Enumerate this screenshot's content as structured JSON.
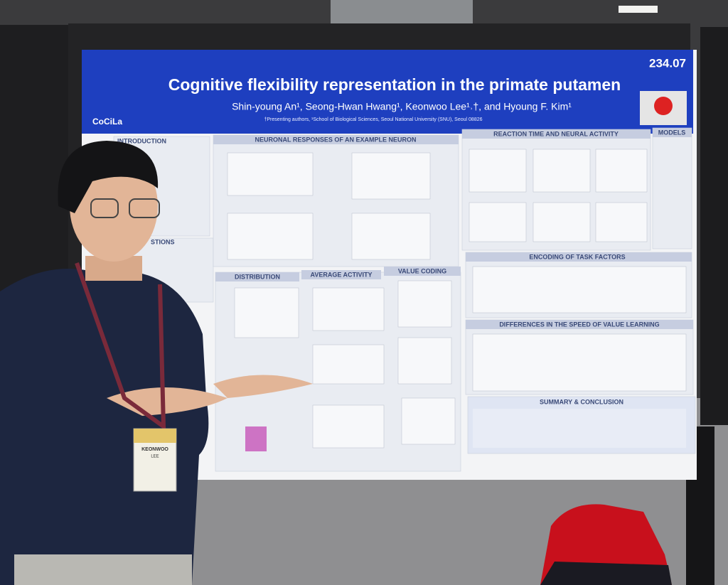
{
  "poster": {
    "number": "234.07",
    "title": "Cognitive flexibility representation in the primate putamen",
    "authors": "Shin-young An¹, Seong-Hwan Hwang¹, Keonwoo Lee¹˒†, and Hyoung F. Kim¹",
    "affiliation": "†Presenting authors, ¹School of Biological Sciences, Seoul National University (SNU), Seoul 08826",
    "lab_logo": "CoCiLa",
    "sections": {
      "introduction": "INTRODUCTION",
      "neuronal_responses": "NEURONAL RESPONSES OF AN EXAMPLE NEURON",
      "reaction_time": "REACTION TIME AND NEURAL ACTIVITY",
      "models": "MODELS",
      "questions": "STIONS",
      "distribution": "DISTRIBUTION",
      "average_activity": "AVERAGE ACTIVITY",
      "value_coding": "VALUE CODING",
      "encoding": "ENCODING OF TASK FACTORS",
      "speed": "DIFFERENCES IN THE SPEED OF VALUE LEARNING",
      "summary": "SUMMARY & CONCLUSION"
    }
  },
  "badge": {
    "first_name": "KEONWOO",
    "last_name": "LEE"
  }
}
